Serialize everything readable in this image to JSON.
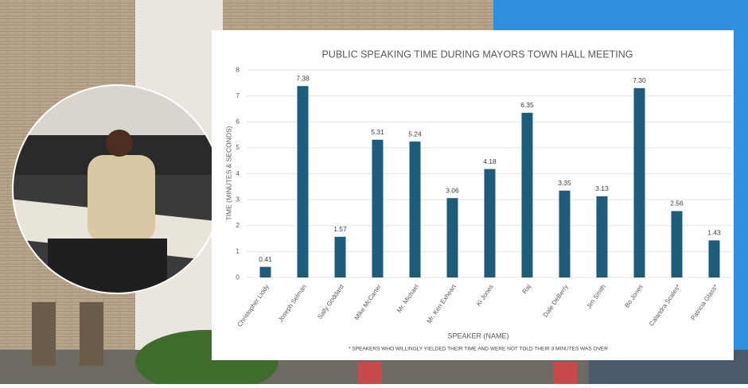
{
  "chart_data": {
    "type": "bar",
    "title": "PUBLIC SPEAKING TIME DURING MAYORS TOWN HALL MEETING",
    "x_label": "SPEAKER (NAME)",
    "y_label": "TIME (MINUTES & SECONDS)",
    "footnote": "* SPEAKERS WHO WILLINGLY YIELDED THEIR TIME AND WERE NOT TOLD THEIR 3 MINUTES WAS OVER",
    "categories": [
      "Christopher Liddy",
      "Joseph Selman",
      "Sally Goddard",
      "Mike McCarter",
      "Mr. Michael",
      "Mr. Ken Exheart",
      "Ki Jones",
      "Raj",
      "Dale DeBerry",
      "Jim Smith",
      "Bo Jones",
      "Calandra Scales*",
      "Patricia Glass*"
    ],
    "values": [
      0.41,
      7.38,
      1.57,
      5.31,
      5.24,
      3.06,
      4.18,
      6.35,
      3.35,
      3.13,
      7.3,
      2.56,
      1.43
    ],
    "value_labels": [
      "0.41",
      "7.38",
      "1.57",
      "5.31",
      "5.24",
      "3.06",
      "4.18",
      "6.35",
      "3.35",
      "3.13",
      "7.30",
      "2.56",
      "1.43"
    ],
    "color": "#1d5d7c",
    "ylim": [
      0,
      8
    ],
    "yticks": [
      0,
      1,
      2,
      3,
      4,
      5,
      6,
      7,
      8
    ],
    "grid": true
  }
}
